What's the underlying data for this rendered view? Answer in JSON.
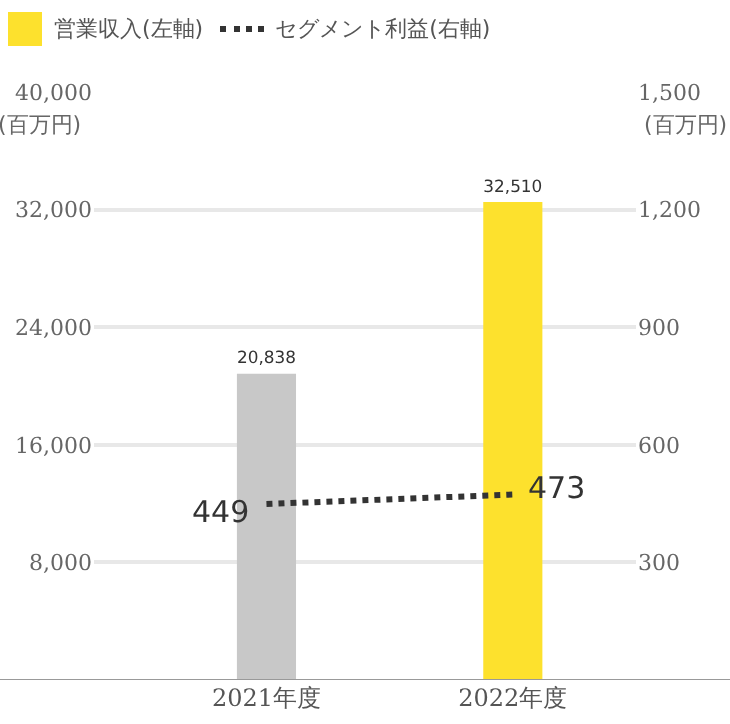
{
  "chart_data": {
    "type": "bar",
    "categories": [
      "2021年度",
      "2022年度"
    ],
    "series": [
      {
        "name": "営業収入(左軸)",
        "color": "#fde12d",
        "colors": [
          "#c8c8c8",
          "#fde12d"
        ],
        "values": [
          20838,
          32510
        ],
        "value_labels": [
          "20,838",
          "32,510"
        ]
      },
      {
        "name": "セグメント利益(右軸)",
        "type": "line",
        "axis": "y2",
        "color": "#333333",
        "line_style": "dotted",
        "marker": "none",
        "values": [
          449,
          473
        ],
        "value_labels": [
          "449",
          "473"
        ]
      }
    ],
    "ylim": [
      0,
      40000
    ],
    "yticks": [
      {
        "value": 8000,
        "label": "8,000"
      },
      {
        "value": 16000,
        "label": "16,000"
      },
      {
        "value": 24000,
        "label": "24,000"
      },
      {
        "value": 32000,
        "label": "32,000"
      },
      {
        "value": 40000,
        "label": "40,000"
      }
    ],
    "y2lim": [
      0,
      1500
    ],
    "y2ticks": [
      300,
      600,
      900,
      {
        "value": 1200,
        "label": "1,200"
      },
      {
        "value": 1500,
        "label": "1,500"
      }
    ],
    "ylabel": "(百万円)",
    "y2label": "(百万円)",
    "grid": "y",
    "legend": "top left"
  }
}
